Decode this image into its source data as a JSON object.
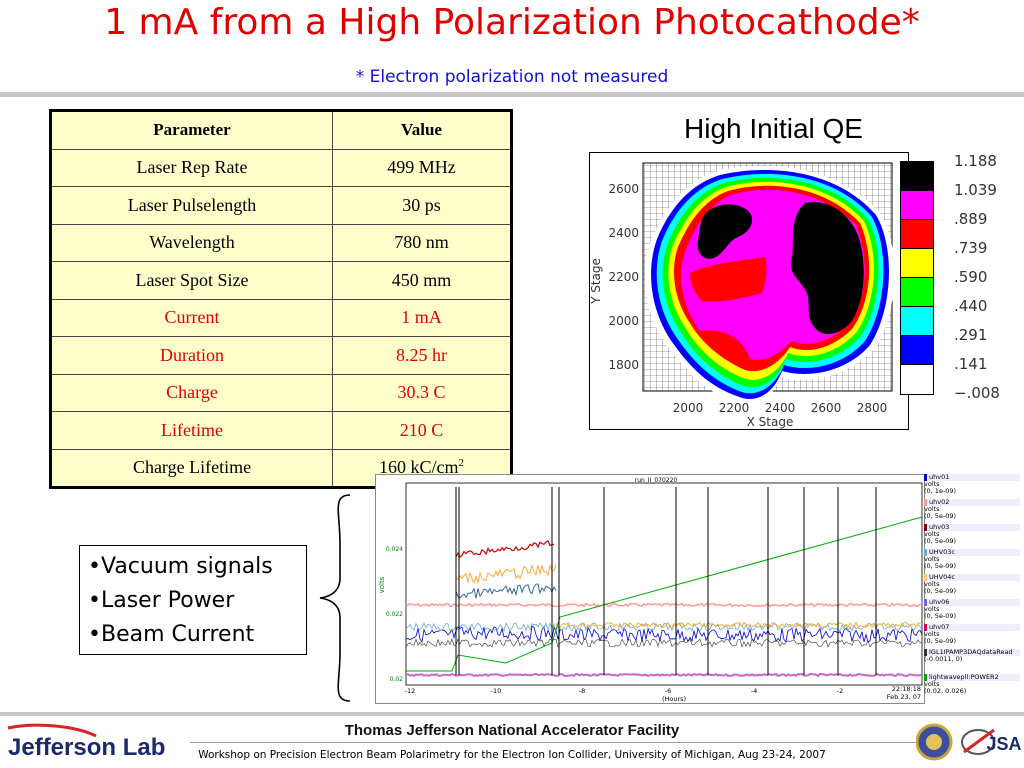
{
  "slide": {
    "title_main": "1 mA from a High Polarization Photocathode",
    "title_asterisk": "*",
    "subtitle": "* Electron polarization not measured"
  },
  "table": {
    "headers": [
      "Parameter",
      "Value"
    ],
    "rows": [
      {
        "param": "Laser Rep Rate",
        "value": "499 MHz",
        "highlight": false
      },
      {
        "param": "Laser Pulselength",
        "value": "30 ps",
        "highlight": false
      },
      {
        "param": "Wavelength",
        "value": "780 nm",
        "highlight": false
      },
      {
        "param": "Laser Spot Size",
        "value": "450 mm",
        "highlight": false
      },
      {
        "param": "Current",
        "value": "1 mA",
        "highlight": true
      },
      {
        "param": "Duration",
        "value": "8.25 hr",
        "highlight": true
      },
      {
        "param": "Charge",
        "value": "30.3 C",
        "highlight": true
      },
      {
        "param": "Lifetime",
        "value": "210 C",
        "highlight": true
      },
      {
        "param": "Charge Lifetime",
        "value": "160 kC/cm",
        "value_sup": "2",
        "highlight": false
      }
    ],
    "colors": {
      "header_bg": "#ffffcc",
      "highlight_text": "#e00000"
    }
  },
  "qe_map": {
    "title": "High Initial QE",
    "xlabel": "X  Stage",
    "ylabel": "Y  Stage",
    "x_ticks": [
      "2000",
      "2200",
      "2400",
      "2600",
      "2800"
    ],
    "y_ticks": [
      "2600",
      "2400",
      "2200",
      "2000",
      "1800"
    ],
    "legend": [
      {
        "label": "1.188",
        "color": "#000000"
      },
      {
        "label": "1.039",
        "color": "#ff00ff"
      },
      {
        "label": ".889",
        "color": "#ff0000"
      },
      {
        "label": ".739",
        "color": "#ffff00"
      },
      {
        "label": ".590",
        "color": "#00ff00"
      },
      {
        "label": ".440",
        "color": "#00ffff"
      },
      {
        "label": ".291",
        "color": "#0000ff"
      },
      {
        "label": ".141",
        "color": "#ffffff"
      },
      {
        "label": "−.008",
        "color": ""
      }
    ]
  },
  "scope": {
    "chart_title": "run_II_070220",
    "y_label": "volts",
    "y_ticks": [
      "0.024",
      "0.022",
      "0.02"
    ],
    "x_ticks": [
      "-12",
      "-10",
      "-8",
      "-6",
      "-4",
      "-2"
    ],
    "x_label": "(Hours)",
    "time_stamp_1": "22:18:18",
    "time_stamp_2": "Feb 23, 07",
    "channels": [
      {
        "name": "uhv01",
        "units": "volts",
        "range": "(0, 1e-09)",
        "color": "#0000cc"
      },
      {
        "name": "uhv02",
        "units": "volts",
        "range": "(0, 5e-09)",
        "color": "#ff9999"
      },
      {
        "name": "uhv03",
        "units": "volts",
        "range": "(0, 5e-09)",
        "color": "#880000"
      },
      {
        "name": "UHV03c",
        "units": "volts",
        "range": "(0, 5e-09)",
        "color": "#66aacc"
      },
      {
        "name": "UHV04c",
        "units": "volts",
        "range": "(0, 5e-09)",
        "color": "#ffcc66"
      },
      {
        "name": "uhv06",
        "units": "volts",
        "range": "(0, 5e-09)",
        "color": "#6666cc"
      },
      {
        "name": "uhv07",
        "units": "volts",
        "range": "(0, 5e-09)",
        "color": "#cc0066"
      },
      {
        "name": "IGL1IPAMP3DAQdataRead",
        "units": "",
        "range": "(-0.0011, 0)",
        "color": "#333333"
      },
      {
        "name": "lightwavepll:POWER2",
        "units": "volts",
        "range": "(0.02, 0.026)",
        "color": "#00aa00"
      }
    ]
  },
  "bullets": [
    "•Vacuum signals",
    "•Laser Power",
    "•Beam Current"
  ],
  "footer": {
    "org": "Thomas Jefferson National Accelerator Facility",
    "workshop": "Workshop on Precision Electron Beam Polarimetry for the Electron Ion Collider, University of Michigan, Aug 23-24, 2007",
    "logo_text": "Jefferson Lab",
    "jsa_text": "JSA"
  }
}
